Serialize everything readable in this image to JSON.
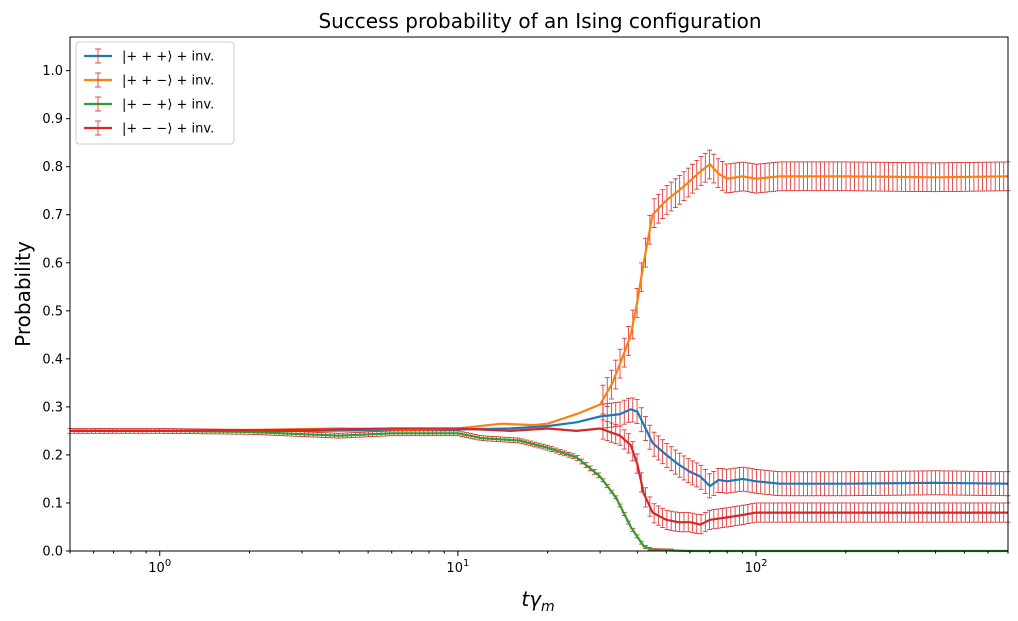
{
  "chart_data": {
    "type": "line",
    "title": "Success probability of an Ising configuration",
    "xlabel": "tγ",
    "xlabel_sub": "m",
    "ylabel": "Probability",
    "xscale": "log",
    "xlim": [
      0.5,
      700
    ],
    "ylim": [
      0,
      1.07
    ],
    "x_major_ticks": [
      1,
      10,
      100
    ],
    "x_major_tick_labels": [
      {
        "base": "10",
        "exp": "0"
      },
      {
        "base": "10",
        "exp": "1"
      },
      {
        "base": "10",
        "exp": "2"
      }
    ],
    "y_ticks": [
      0,
      0.1,
      0.2,
      0.3,
      0.4,
      0.5,
      0.6,
      0.7,
      0.8,
      0.9,
      1.0
    ],
    "y_tick_labels": [
      "0.0",
      "0.1",
      "0.2",
      "0.3",
      "0.4",
      "0.5",
      "0.6",
      "0.7",
      "0.8",
      "0.9",
      "1.0"
    ],
    "grid": false,
    "legend_position": "top-left",
    "error_bar_color": "#d62728",
    "series": [
      {
        "name": "|+ + +⟩ + inv.",
        "color": "#1f77b4",
        "points": [
          [
            0.5,
            0.25
          ],
          [
            1,
            0.25
          ],
          [
            3,
            0.25
          ],
          [
            10,
            0.253
          ],
          [
            15,
            0.255
          ],
          [
            20,
            0.26
          ],
          [
            25,
            0.268
          ],
          [
            30,
            0.28
          ],
          [
            35,
            0.285
          ],
          [
            38,
            0.295
          ],
          [
            40,
            0.29
          ],
          [
            45,
            0.225
          ],
          [
            50,
            0.2
          ],
          [
            55,
            0.18
          ],
          [
            60,
            0.165
          ],
          [
            65,
            0.155
          ],
          [
            70,
            0.135
          ],
          [
            75,
            0.148
          ],
          [
            80,
            0.145
          ],
          [
            90,
            0.15
          ],
          [
            100,
            0.145
          ],
          [
            120,
            0.14
          ],
          [
            200,
            0.14
          ],
          [
            400,
            0.142
          ],
          [
            700,
            0.14
          ]
        ],
        "error": 0.025
      },
      {
        "name": "|+ + −⟩ + inv.",
        "color": "#ff7f0e",
        "points": [
          [
            0.5,
            0.25
          ],
          [
            1,
            0.25
          ],
          [
            2,
            0.252
          ],
          [
            4,
            0.255
          ],
          [
            7,
            0.253
          ],
          [
            10,
            0.255
          ],
          [
            14,
            0.265
          ],
          [
            18,
            0.262
          ],
          [
            20,
            0.265
          ],
          [
            25,
            0.285
          ],
          [
            30,
            0.305
          ],
          [
            33,
            0.35
          ],
          [
            36,
            0.41
          ],
          [
            38,
            0.45
          ],
          [
            40,
            0.52
          ],
          [
            42,
            0.6
          ],
          [
            45,
            0.7
          ],
          [
            50,
            0.73
          ],
          [
            55,
            0.75
          ],
          [
            60,
            0.77
          ],
          [
            65,
            0.79
          ],
          [
            70,
            0.805
          ],
          [
            75,
            0.785
          ],
          [
            80,
            0.775
          ],
          [
            90,
            0.78
          ],
          [
            100,
            0.775
          ],
          [
            120,
            0.78
          ],
          [
            200,
            0.78
          ],
          [
            400,
            0.778
          ],
          [
            700,
            0.78
          ]
        ],
        "error": 0.03
      },
      {
        "name": "|+ − +⟩ + inv.",
        "color": "#2ca02c",
        "points": [
          [
            0.5,
            0.25
          ],
          [
            1,
            0.25
          ],
          [
            2,
            0.248
          ],
          [
            4,
            0.24
          ],
          [
            6,
            0.245
          ],
          [
            10,
            0.245
          ],
          [
            12,
            0.235
          ],
          [
            16,
            0.23
          ],
          [
            20,
            0.215
          ],
          [
            25,
            0.195
          ],
          [
            30,
            0.155
          ],
          [
            34,
            0.11
          ],
          [
            38,
            0.05
          ],
          [
            42,
            0.01
          ],
          [
            45,
            0.002
          ],
          [
            60,
            0.0
          ],
          [
            700,
            0.0
          ]
        ],
        "error": 0.003
      },
      {
        "name": "|+ − −⟩ + inv.",
        "color": "#d62728",
        "points": [
          [
            0.5,
            0.25
          ],
          [
            1,
            0.25
          ],
          [
            3,
            0.252
          ],
          [
            6,
            0.255
          ],
          [
            10,
            0.255
          ],
          [
            15,
            0.25
          ],
          [
            20,
            0.255
          ],
          [
            25,
            0.25
          ],
          [
            30,
            0.255
          ],
          [
            35,
            0.24
          ],
          [
            38,
            0.22
          ],
          [
            40,
            0.18
          ],
          [
            42,
            0.12
          ],
          [
            45,
            0.08
          ],
          [
            50,
            0.065
          ],
          [
            55,
            0.06
          ],
          [
            60,
            0.06
          ],
          [
            65,
            0.055
          ],
          [
            70,
            0.065
          ],
          [
            80,
            0.07
          ],
          [
            90,
            0.075
          ],
          [
            100,
            0.08
          ],
          [
            150,
            0.08
          ],
          [
            700,
            0.08
          ]
        ],
        "error": 0.02
      }
    ]
  }
}
